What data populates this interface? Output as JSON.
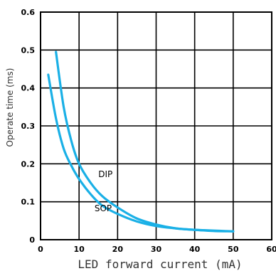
{
  "chart_data": {
    "type": "line",
    "xlabel": "LED forward current (mA)",
    "ylabel": "Operate time (ms)",
    "xlim": [
      0,
      60
    ],
    "ylim": [
      0,
      0.6
    ],
    "x_ticks": [
      0,
      10,
      20,
      30,
      40,
      50,
      60
    ],
    "x_tick_labels": [
      "0",
      "10",
      "20",
      "30",
      "40",
      "50",
      "60"
    ],
    "y_ticks": [
      0,
      0.1,
      0.2,
      0.3,
      0.4,
      0.5,
      0.6
    ],
    "y_tick_labels": [
      "0",
      "0.1",
      "0.2",
      "0.3",
      "0.4",
      "0.5",
      "0.6"
    ],
    "grid": true,
    "line_color": "#1ab0e6",
    "series": [
      {
        "name": "DIP",
        "points": [
          [
            4,
            0.495
          ],
          [
            6,
            0.35
          ],
          [
            8,
            0.26
          ],
          [
            10,
            0.2
          ],
          [
            13,
            0.15
          ],
          [
            16,
            0.115
          ],
          [
            20,
            0.085
          ],
          [
            25,
            0.056
          ],
          [
            30,
            0.04
          ],
          [
            35,
            0.03
          ],
          [
            40,
            0.026
          ],
          [
            45,
            0.023
          ],
          [
            50,
            0.022
          ]
        ]
      },
      {
        "name": "SOP",
        "points": [
          [
            2,
            0.435
          ],
          [
            4,
            0.32
          ],
          [
            6,
            0.24
          ],
          [
            8,
            0.195
          ],
          [
            10,
            0.16
          ],
          [
            13,
            0.12
          ],
          [
            16,
            0.09
          ],
          [
            20,
            0.068
          ],
          [
            25,
            0.048
          ],
          [
            30,
            0.036
          ],
          [
            35,
            0.03
          ],
          [
            40,
            0.026
          ],
          [
            50,
            0.022
          ]
        ]
      }
    ],
    "annotations": [
      {
        "text": "DIP",
        "x": 15,
        "y": 0.165
      },
      {
        "text": "SOP",
        "x": 14,
        "y": 0.075
      }
    ]
  }
}
